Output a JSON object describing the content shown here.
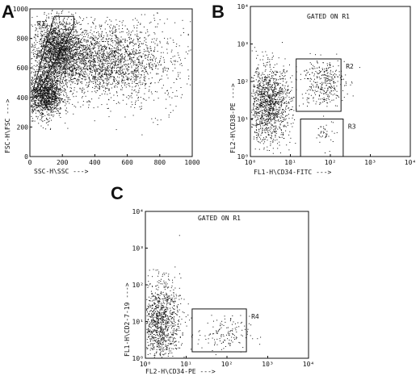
{
  "chart_data": [
    {
      "type": "scatter",
      "panel": "A",
      "xlabel": "SSC-H\\SSC --->",
      "ylabel": "FSC-H\\FSC --->",
      "xlim": [
        0,
        1000
      ],
      "ylim": [
        0,
        1000
      ],
      "xscale": "linear",
      "yscale": "linear",
      "xticks": [
        "0",
        "200",
        "400",
        "600",
        "800",
        "1000"
      ],
      "yticks": [
        "0",
        "200",
        "400",
        "600",
        "800",
        "1000"
      ],
      "gated_on": "",
      "gates": [
        {
          "name": "R1",
          "polygon": [
            [
              20,
              450
            ],
            [
              150,
              950
            ],
            [
              270,
              950
            ],
            [
              270,
              880
            ],
            [
              60,
              450
            ]
          ]
        }
      ],
      "clusters": [
        {
          "n": 2000,
          "cx": 170,
          "cy": 720,
          "sx": 75,
          "sy": 105,
          "xscale": "linear",
          "yscale": "linear"
        },
        {
          "n": 1800,
          "cx": 420,
          "cy": 650,
          "sx": 180,
          "sy": 115,
          "xscale": "linear",
          "yscale": "linear"
        },
        {
          "n": 1400,
          "cx": 90,
          "cy": 420,
          "sx": 55,
          "sy": 75,
          "xscale": "linear",
          "yscale": "linear"
        },
        {
          "n": 500,
          "cx": 650,
          "cy": 620,
          "sx": 190,
          "sy": 160,
          "xscale": "linear",
          "yscale": "linear"
        }
      ]
    },
    {
      "type": "scatter",
      "panel": "B",
      "xlabel": "FL1-H\\CD34-FITC --->",
      "ylabel": "FL2-H\\CD38-PE --->",
      "xlim": [
        1,
        10000
      ],
      "ylim": [
        1,
        10000
      ],
      "xscale": "log",
      "yscale": "log",
      "xticks": [
        "10⁰",
        "10¹",
        "10²",
        "10³",
        "10⁴"
      ],
      "yticks": [
        "10⁰",
        "10¹",
        "10²",
        "10³",
        "10⁴"
      ],
      "gated_on": "GATED ON R1",
      "gates": [
        {
          "name": "R2",
          "rect": [
            [
              14,
              16
            ],
            [
              185,
              400
            ]
          ]
        },
        {
          "name": "R3",
          "rect": [
            [
              18,
              1
            ],
            [
              210,
              10
            ]
          ]
        }
      ],
      "clusters": [
        {
          "n": 1300,
          "cx": 0.45,
          "cy": 1.4,
          "sx": 0.28,
          "sy": 0.5,
          "xscale": "log",
          "yscale": "log"
        },
        {
          "n": 320,
          "cx": 1.8,
          "cy": 2.0,
          "sx": 0.28,
          "sy": 0.32,
          "xscale": "log",
          "yscale": "log"
        },
        {
          "n": 40,
          "cx": 1.9,
          "cy": 0.6,
          "sx": 0.12,
          "sy": 0.18,
          "xscale": "log",
          "yscale": "log"
        }
      ]
    },
    {
      "type": "scatter",
      "panel": "C",
      "xlabel": "FL2-H\\CD34-PE --->",
      "ylabel": "FL1-H\\CD2-7-19 --->",
      "xlim": [
        1,
        10000
      ],
      "ylim": [
        1,
        10000
      ],
      "xscale": "log",
      "yscale": "log",
      "xticks": [
        "10⁰",
        "10¹",
        "10²",
        "10³",
        "10⁴"
      ],
      "yticks": [
        "10⁰",
        "10¹",
        "10²",
        "10³",
        "10⁴"
      ],
      "gated_on": "GATED ON R1",
      "gates": [
        {
          "name": "R4",
          "rect": [
            [
              14,
              1.5
            ],
            [
              300,
              22
            ]
          ]
        }
      ],
      "clusters": [
        {
          "n": 1100,
          "cx": 0.35,
          "cy": 1.0,
          "sx": 0.25,
          "sy": 0.55,
          "xscale": "log",
          "yscale": "log"
        },
        {
          "n": 140,
          "cx": 1.9,
          "cy": 0.65,
          "sx": 0.32,
          "sy": 0.25,
          "xscale": "log",
          "yscale": "log"
        }
      ]
    }
  ]
}
